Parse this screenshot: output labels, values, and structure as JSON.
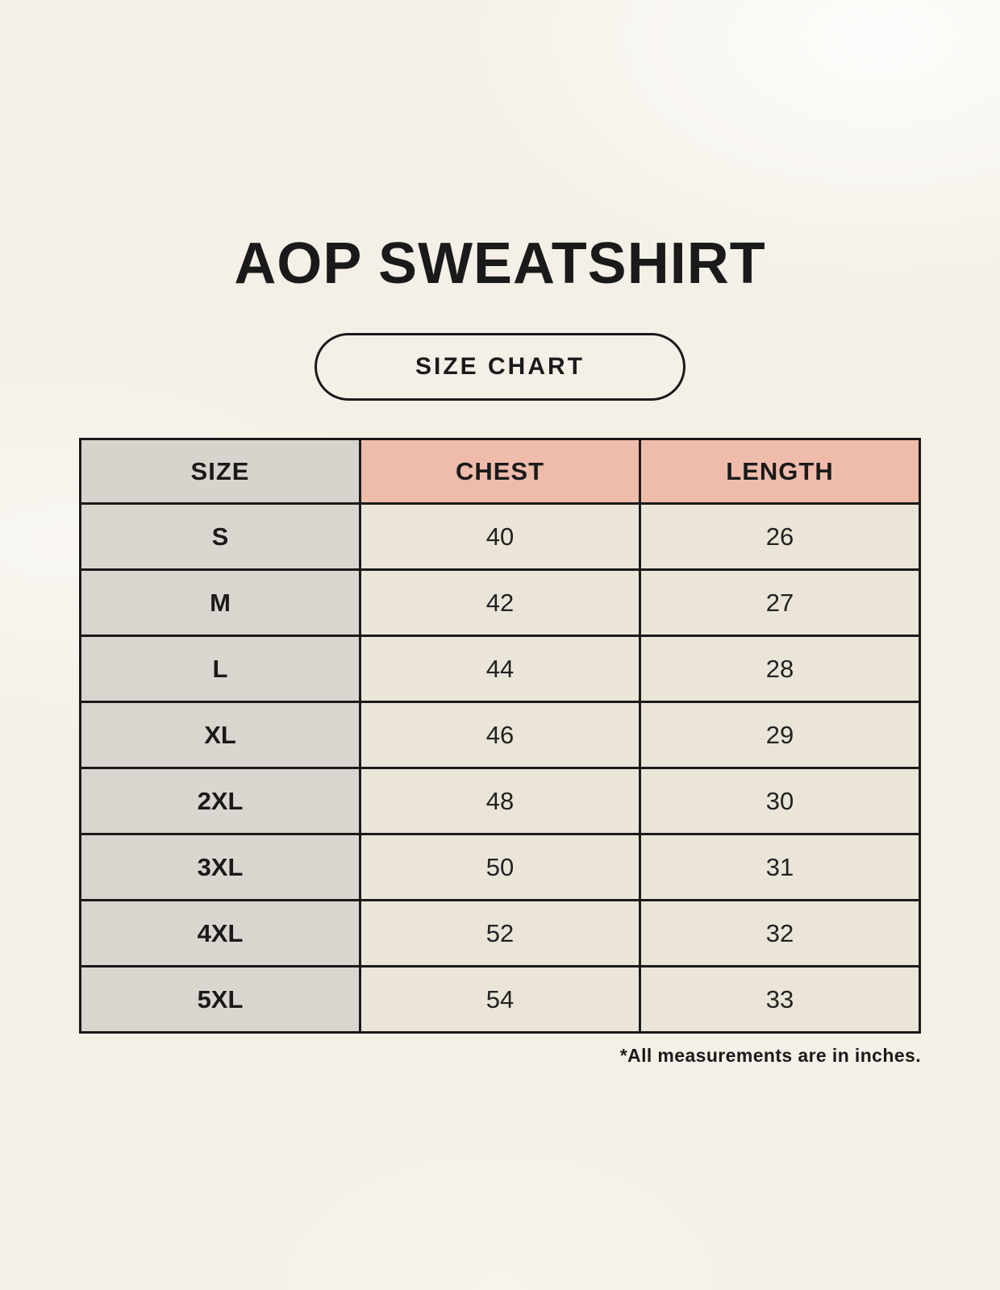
{
  "page": {
    "title": "AOP SWEATSHIRT",
    "badge_label": "SIZE CHART",
    "footnote": "*All measurements are in inches."
  },
  "size_chart": {
    "columns": [
      "SIZE",
      "CHEST",
      "LENGTH"
    ],
    "rows": [
      {
        "size": "S",
        "chest": "40",
        "length": "26"
      },
      {
        "size": "M",
        "chest": "42",
        "length": "27"
      },
      {
        "size": "L",
        "chest": "44",
        "length": "28"
      },
      {
        "size": "XL",
        "chest": "46",
        "length": "29"
      },
      {
        "size": "2XL",
        "chest": "48",
        "length": "30"
      },
      {
        "size": "3XL",
        "chest": "50",
        "length": "31"
      },
      {
        "size": "4XL",
        "chest": "52",
        "length": "32"
      },
      {
        "size": "5XL",
        "chest": "54",
        "length": "33"
      }
    ]
  },
  "chart_data": {
    "type": "table",
    "title": "AOP SWEATSHIRT",
    "subtitle": "SIZE CHART",
    "columns": [
      "SIZE",
      "CHEST",
      "LENGTH"
    ],
    "rows": [
      [
        "S",
        40,
        26
      ],
      [
        "M",
        42,
        27
      ],
      [
        "L",
        44,
        28
      ],
      [
        "XL",
        46,
        29
      ],
      [
        "2XL",
        48,
        30
      ],
      [
        "3XL",
        50,
        31
      ],
      [
        "4XL",
        52,
        32
      ],
      [
        "5XL",
        54,
        33
      ]
    ],
    "units": "inches",
    "annotations": [
      "*All measurements are in inches."
    ]
  },
  "colors": {
    "background": "#f4f0e7",
    "header_size_bg": "#d9d3ce",
    "header_measure_bg": "#efbcab",
    "size_col_bg": "#dbd5d0",
    "value_cell_bg": "#ebe4d9",
    "border": "#1a1a1a",
    "text": "#1a1a1a"
  }
}
